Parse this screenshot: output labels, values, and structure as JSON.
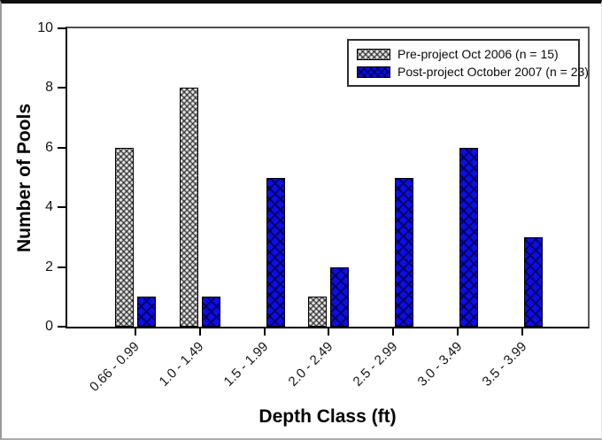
{
  "chart_data": {
    "type": "bar",
    "title": "",
    "xlabel": "Depth Class (ft)",
    "ylabel": "Number of Pools",
    "categories": [
      "0.66 - 0.99",
      "1.0 - 1.49",
      "1.5 - 1.99",
      "2.0 - 2.49",
      "2.5 - 2.99",
      "3.0 - 3.49",
      "3.5 - 3.99"
    ],
    "series": [
      {
        "name": "Pre-project Oct 2006 (n = 15)",
        "values": [
          6,
          8,
          0,
          1,
          0,
          0,
          0
        ],
        "pattern": "gray-checker-hatch",
        "color": "#e4e4e4"
      },
      {
        "name": "Post-project October 2007 (n = 23)",
        "values": [
          1,
          1,
          5,
          2,
          5,
          6,
          3
        ],
        "pattern": "blue-diagonal-crosshatch",
        "color": "#0d0de8"
      }
    ],
    "ylim": [
      0,
      10
    ],
    "yticks": [
      0,
      2,
      4,
      6,
      8,
      10
    ],
    "legend_position": "top-right",
    "grid": false,
    "axis_color": "#000000",
    "frame_color": "#5a5a5a"
  }
}
